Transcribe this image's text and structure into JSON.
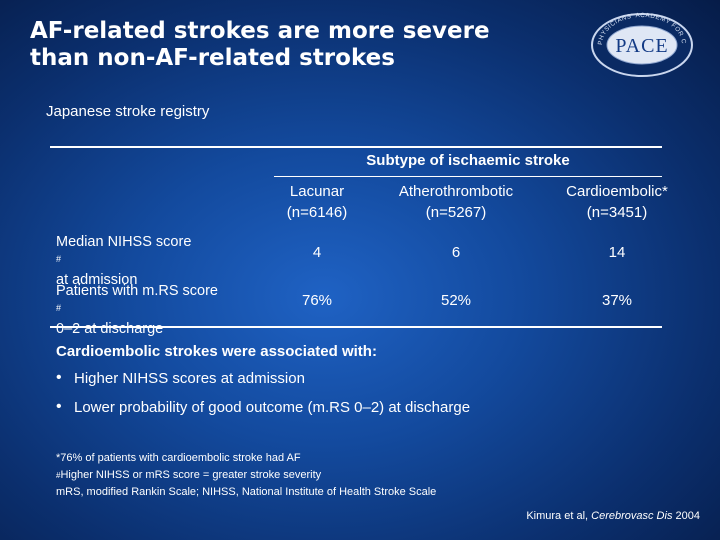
{
  "title": {
    "line1": "AF-related strokes are more severe",
    "line2": "than non-AF-related strokes"
  },
  "logo": {
    "text": "PACE",
    "ring_text": "PHYSICIANS' ACADEMY FOR CARDIOVASCULAR EDUCATION",
    "icon": "pace-logo"
  },
  "subtitle": "Japanese stroke registry",
  "table": {
    "group_header": "Subtype of ischaemic stroke",
    "columns": [
      {
        "name": "Lacunar",
        "n": "(n=6146)"
      },
      {
        "name": "Atherothrombotic",
        "n": "(n=5267)"
      },
      {
        "name": "Cardioembolic*",
        "n": "(n=3451)"
      }
    ],
    "rows": [
      {
        "label_line1": "Median NIHSS score",
        "label_mark": "#",
        "label_line2": "at admission",
        "values": [
          "4",
          "6",
          "14"
        ]
      },
      {
        "label_line1": "Patients with m.RS score",
        "label_mark": "#",
        "label_line2": "0–2 at discharge",
        "values": [
          "76%",
          "52%",
          "37%"
        ]
      }
    ]
  },
  "association": {
    "heading": "Cardioembolic strokes were associated with:",
    "bullets": [
      "Higher NIHSS scores at admission",
      "Lower probability of good outcome (m.RS 0–2) at discharge"
    ]
  },
  "footnotes": {
    "note1": "*76% of patients with cardioembolic stroke had AF",
    "note2_mark": "#",
    "note2": "Higher NIHSS or mRS score = greater stroke severity",
    "note3": "mRS, modified Rankin Scale; NIHSS, National Institute of Health Stroke Scale"
  },
  "citation": {
    "authors": "Kimura et al,",
    "journal": "Cerebrovasc Dis",
    "year": "2004"
  },
  "colors": {
    "background_center": "#1f62c4",
    "background_edge": "#061c48",
    "text": "#ffffff"
  }
}
